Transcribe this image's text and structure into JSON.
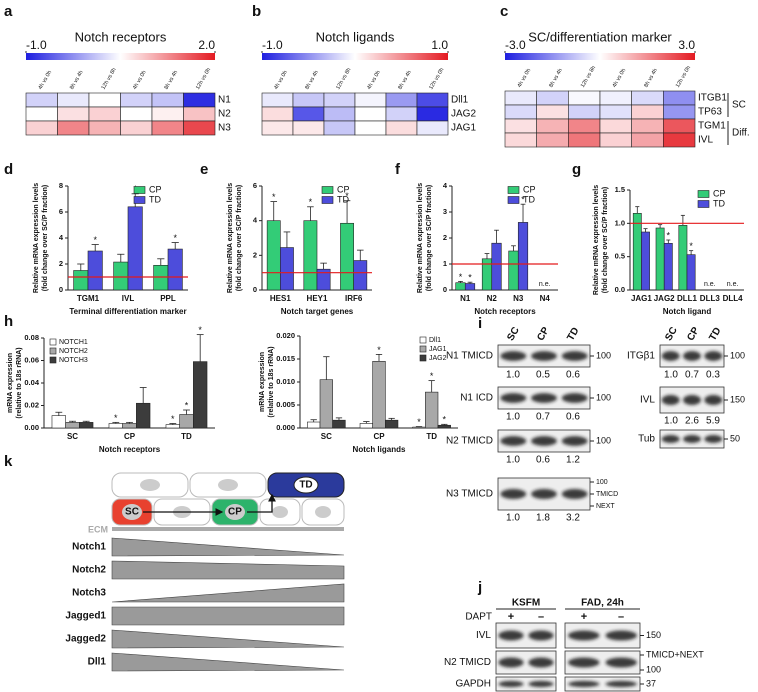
{
  "panel_labels": [
    "a",
    "b",
    "c",
    "d",
    "e",
    "f",
    "g",
    "h",
    "i",
    "j",
    "k"
  ],
  "chart_data": [
    {
      "type": "heatmap",
      "title": "Notch receptors",
      "zlim": [
        -1,
        2
      ],
      "zticks": [
        {
          "value": -1,
          "label": "-1.0"
        },
        {
          "value": 2,
          "label": "2.0"
        }
      ],
      "colormap": [
        "#1f1fe0",
        "#ffffff",
        "#e41a22"
      ],
      "columns": [
        "4h vs 0h",
        "8h vs 4h",
        "12h vs 8h",
        "4h vs 0h",
        "8h vs 4h",
        "12h vs 0h"
      ],
      "rows": [
        {
          "name": "N1",
          "values": [
            0.2,
            0.35,
            0.5,
            0.2,
            0.1,
            -0.9
          ]
        },
        {
          "name": "N2",
          "values": [
            0.5,
            0.7,
            0.8,
            0.5,
            0.6,
            0.9
          ]
        },
        {
          "name": "N3",
          "values": [
            0.8,
            1.3,
            1.0,
            0.8,
            1.3,
            1.7
          ]
        }
      ]
    },
    {
      "type": "heatmap",
      "title": "Notch ligands",
      "zlim": [
        -1,
        1
      ],
      "zticks": [
        {
          "value": -1,
          "label": "-1.0"
        },
        {
          "value": 1,
          "label": "1.0"
        }
      ],
      "colormap": [
        "#1f1fe0",
        "#ffffff",
        "#e41a22"
      ],
      "columns": [
        "4h vs 0h",
        "8h vs 4h",
        "12h vs 8h",
        "4h vs 0h",
        "8h vs 4h",
        "12h vs 0h"
      ],
      "rows": [
        {
          "name": "Dll1",
          "values": [
            -0.1,
            -0.25,
            -0.2,
            -0.05,
            -0.45,
            -0.8
          ]
        },
        {
          "name": "JAG2",
          "values": [
            0.15,
            -0.75,
            -0.3,
            0,
            -0.2,
            -0.95
          ]
        },
        {
          "name": "JAG1",
          "values": [
            0.1,
            0.1,
            -0.25,
            0,
            0.15,
            -0.1
          ]
        }
      ]
    },
    {
      "type": "heatmap",
      "title": "SC/differentiation marker",
      "zlim": [
        -3,
        3
      ],
      "zticks": [
        {
          "value": -3,
          "label": "-3.0"
        },
        {
          "value": 3,
          "label": "3.0"
        }
      ],
      "colormap": [
        "#1f1fe0",
        "#ffffff",
        "#e41a22"
      ],
      "columns": [
        "4h vs 0h",
        "8h vs 4h",
        "12h vs 8h",
        "4h vs 0h",
        "8h vs 4h",
        "12h vs 0h"
      ],
      "groups": [
        {
          "label": "SC",
          "rows": [
            {
              "name": "ITGB1",
              "values": [
                -0.3,
                -0.6,
                -0.1,
                -0.2,
                -0.5,
                -1.5
              ]
            },
            {
              "name": "TP63",
              "values": [
                -0.5,
                0.4,
                -0.6,
                -0.4,
                0.6,
                -1.4
              ]
            }
          ]
        },
        {
          "label": "Diff.",
          "rows": [
            {
              "name": "TGM1",
              "values": [
                0.4,
                1.0,
                1.6,
                0.5,
                1.0,
                2.2
              ]
            },
            {
              "name": "IVL",
              "values": [
                0.5,
                1.1,
                1.8,
                0.6,
                1.2,
                2.6
              ]
            }
          ]
        }
      ]
    },
    {
      "type": "bar",
      "categories": [
        "TGM1",
        "IVL",
        "PPL"
      ],
      "xlabel": "Terminal differentiation marker",
      "ylabel": [
        "Relative mRNA expression levels",
        "(fold change over SC/P fraction)"
      ],
      "ylim": [
        0,
        8
      ],
      "yticks": [
        0,
        2,
        4,
        6,
        8
      ],
      "legend": "upper right",
      "hline": {
        "value": 1,
        "color": "#e41a1c"
      },
      "series": [
        {
          "name": "CP",
          "color": "#33cc77",
          "values": [
            1.5,
            2.15,
            1.9
          ],
          "errors": [
            0.5,
            0.6,
            0.5
          ]
        },
        {
          "name": "TD",
          "color": "#4d4ddb",
          "values": [
            3.0,
            6.4,
            3.15
          ],
          "errors": [
            0.5,
            1.0,
            0.5
          ],
          "significance": [
            "*",
            "*",
            "*"
          ]
        }
      ]
    },
    {
      "type": "bar",
      "categories": [
        "HES1",
        "HEY1",
        "IRF6"
      ],
      "xlabel": "Notch target genes",
      "ylabel": [
        "Relative mRNA expression levels",
        "(fold change over SC/P fraction)"
      ],
      "ylim": [
        0,
        6
      ],
      "yticks": [
        0,
        2,
        4,
        6
      ],
      "legend": "upper right",
      "hline": {
        "value": 1,
        "color": "#e41a1c"
      },
      "series": [
        {
          "name": "CP",
          "color": "#33cc77",
          "values": [
            4.0,
            4.0,
            3.85
          ],
          "errors": [
            1.1,
            0.8,
            1.3
          ],
          "significance": [
            "*",
            "*",
            "*"
          ]
        },
        {
          "name": "TD",
          "color": "#4d4ddb",
          "values": [
            2.45,
            1.2,
            1.7
          ],
          "errors": [
            0.9,
            0.35,
            0.6
          ]
        }
      ]
    },
    {
      "type": "bar",
      "categories": [
        "N1",
        "N2",
        "N3",
        "N4"
      ],
      "xlabel": "Notch receptors",
      "ylabel": [
        "Relative mRNA expression levels",
        "(fold change over SC/P fraction)"
      ],
      "ylim": [
        0,
        4
      ],
      "yticks": [
        0,
        1,
        2,
        3,
        4
      ],
      "legend": "upper right",
      "hline": {
        "value": 1,
        "color": "#e41a1c"
      },
      "missing_labels": [
        null,
        null,
        null,
        "n.e."
      ],
      "series": [
        {
          "name": "CP",
          "color": "#33cc77",
          "values": [
            0.28,
            1.2,
            1.5,
            null
          ],
          "errors": [
            0.05,
            0.2,
            0.2,
            null
          ],
          "significance": [
            "*",
            null,
            null,
            null
          ]
        },
        {
          "name": "TD",
          "color": "#4d4ddb",
          "values": [
            0.25,
            1.8,
            2.6,
            null
          ],
          "errors": [
            0.05,
            0.5,
            0.7,
            null
          ],
          "significance": [
            "*",
            null,
            "*",
            null
          ]
        }
      ]
    },
    {
      "type": "bar",
      "categories": [
        "JAG1",
        "JAG2",
        "DLL1",
        "DLL3",
        "DLL4"
      ],
      "xlabel": "Notch ligand",
      "ylabel": [
        "Relative mRNA expression levels",
        "(fold change over SC/P fraction)"
      ],
      "ylim": [
        0,
        1.5
      ],
      "yticks": [
        {
          "value": 0,
          "label": "0.0"
        },
        {
          "value": 0.5,
          "label": "0.5"
        },
        {
          "value": 1,
          "label": "1.0"
        },
        {
          "value": 1.5,
          "label": "1.5"
        }
      ],
      "legend": "upper right",
      "hline": {
        "value": 1,
        "color": "#e41a1c"
      },
      "missing_labels": [
        null,
        null,
        null,
        "n.e.",
        "n.e."
      ],
      "series": [
        {
          "name": "CP",
          "color": "#33cc77",
          "values": [
            1.15,
            0.93,
            0.97,
            null,
            null
          ],
          "errors": [
            0.1,
            0.05,
            0.15,
            null,
            null
          ]
        },
        {
          "name": "TD",
          "color": "#4d4ddb",
          "values": [
            0.87,
            0.7,
            0.53,
            null,
            null
          ],
          "errors": [
            0.05,
            0.05,
            0.06,
            null,
            null
          ],
          "significance": [
            null,
            "*",
            "*",
            null,
            null
          ]
        }
      ]
    },
    {
      "type": "bar",
      "categories": [
        "SC",
        "CP",
        "TD"
      ],
      "xlabel": "Notch receptors",
      "ylabel": [
        "mRNA expression",
        "(relative to 18s rRNA)"
      ],
      "ylim": [
        0,
        0.08
      ],
      "yticks": [
        {
          "value": 0,
          "label": "0.00"
        },
        {
          "value": 0.02,
          "label": "0.02"
        },
        {
          "value": 0.04,
          "label": "0.04"
        },
        {
          "value": 0.06,
          "label": "0.06"
        },
        {
          "value": 0.08,
          "label": "0.08"
        }
      ],
      "legend": "upper left",
      "series": [
        {
          "name": "NOTCH1",
          "color": "#ffffff",
          "values": [
            0.011,
            0.004,
            0.003
          ],
          "errors": [
            0.003,
            0.001,
            0.001
          ],
          "significance": [
            null,
            "*",
            "*"
          ]
        },
        {
          "name": "NOTCH2",
          "color": "#a8a8a8",
          "values": [
            0.005,
            0.004,
            0.012
          ],
          "errors": [
            0.001,
            0.001,
            0.004
          ],
          "significance": [
            null,
            null,
            "*"
          ]
        },
        {
          "name": "NOTCH3",
          "color": "#3c3c3c",
          "values": [
            0.005,
            0.022,
            0.059
          ],
          "errors": [
            0.001,
            0.014,
            0.024
          ],
          "significance": [
            null,
            null,
            "*"
          ]
        }
      ]
    },
    {
      "type": "bar",
      "categories": [
        "SC",
        "CP",
        "TD"
      ],
      "xlabel": "Notch ligands",
      "ylabel": [
        "mRNA expression",
        "(relative to 18s rRNA)"
      ],
      "ylim": [
        0,
        0.02
      ],
      "yticks": [
        {
          "value": 0,
          "label": "0.000"
        },
        {
          "value": 0.005,
          "label": "0.005"
        },
        {
          "value": 0.01,
          "label": "0.010"
        },
        {
          "value": 0.015,
          "label": "0.015"
        },
        {
          "value": 0.02,
          "label": "0.020"
        }
      ],
      "legend": "upper right",
      "series": [
        {
          "name": "Dll1",
          "color": "#ffffff",
          "values": [
            0.0013,
            0.001,
            0.0002
          ],
          "errors": [
            0.0005,
            0.0004,
            0.0001
          ],
          "significance": [
            null,
            null,
            "*"
          ]
        },
        {
          "name": "JAG1",
          "color": "#a8a8a8",
          "values": [
            0.0105,
            0.0145,
            0.0078
          ],
          "errors": [
            0.005,
            0.0015,
            0.0025
          ],
          "significance": [
            null,
            "*",
            "*"
          ]
        },
        {
          "name": "JAG2",
          "color": "#3c3c3c",
          "values": [
            0.0017,
            0.0017,
            0.0006
          ],
          "errors": [
            0.0005,
            0.0004,
            0.0002
          ],
          "significance": [
            null,
            null,
            "*"
          ]
        }
      ]
    }
  ],
  "blot_i": {
    "lanes": [
      "SC",
      "CP",
      "TD"
    ],
    "left": [
      {
        "label": "N1 TMICD",
        "quant": [
          "1.0",
          "0.5",
          "0.6"
        ],
        "markers": [
          "100"
        ]
      },
      {
        "label": "N1 ICD",
        "quant": [
          "1.0",
          "0.7",
          "0.6"
        ],
        "markers": [
          "100"
        ]
      },
      {
        "label": "N2 TMICD",
        "quant": [
          "1.0",
          "0.6",
          "1.2"
        ],
        "markers": [
          "100"
        ]
      },
      {
        "label": "N3 TMICD",
        "quant": [
          "1.0",
          "1.8",
          "3.2"
        ],
        "markers": [
          "100",
          "TMICD",
          "NEXT"
        ]
      }
    ],
    "right_lanes": [
      "SC",
      "CP",
      "TD"
    ],
    "right": [
      {
        "label": "ITGβ1",
        "quant": [
          "1.0",
          "0.7",
          "0.3"
        ],
        "markers": [
          "100"
        ]
      },
      {
        "label": "IVL",
        "quant": [
          "1.0",
          "2.6",
          "5.9"
        ],
        "markers": [
          "150"
        ]
      },
      {
        "label": "Tub",
        "markers": [
          "50"
        ]
      }
    ]
  },
  "blot_j": {
    "conditions": [
      "KSFM",
      "FAD, 24h"
    ],
    "treatment": "DAPT",
    "treatment_signs": [
      "+",
      "–",
      "+",
      "–"
    ],
    "blots": [
      {
        "label": "IVL",
        "markers": [
          "150"
        ]
      },
      {
        "label": "N2 TMICD",
        "markers": [
          "TMICD+NEXT",
          "100"
        ]
      },
      {
        "label": "GAPDH",
        "markers": [
          "37"
        ]
      }
    ]
  },
  "diagram_k": {
    "cells": [
      "SC",
      "CP",
      "TD"
    ],
    "ecm": "ECM",
    "genes": [
      "Notch1",
      "Notch2",
      "Notch3",
      "Jagged1",
      "Jagged2",
      "Dll1"
    ]
  }
}
